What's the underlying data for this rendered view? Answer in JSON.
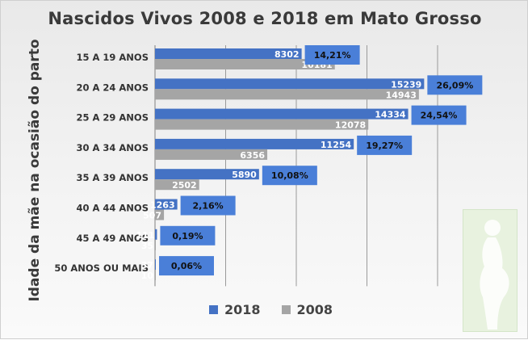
{
  "chart_data": {
    "type": "bar",
    "orientation": "horizontal",
    "title": "Nascidos Vivos 2008 e 2018 em Mato Grosso",
    "ylabel": "Idade da mãe na ocasião do parto",
    "categories": [
      "15 A 19 ANOS",
      "20 A 24 ANOS",
      "25 A 29 ANOS",
      "30 A 34 ANOS",
      "35 A 39 ANOS",
      "40 A 44 ANOS",
      "45 A 49 ANOS",
      "50 ANOS OU MAIS"
    ],
    "series": [
      {
        "name": "2018",
        "color": "#4472c4",
        "values": [
          8302,
          15239,
          14334,
          11254,
          5890,
          1263,
          111,
          37
        ]
      },
      {
        "name": "2008",
        "color": "#a5a5a5",
        "values": [
          10181,
          14943,
          12078,
          6356,
          2502,
          507,
          35,
          10
        ]
      }
    ],
    "annotations": [
      "14,21%",
      "26,09%",
      "24,54%",
      "19,27%",
      "10,08%",
      "2,16%",
      "0,19%",
      "0,06%"
    ],
    "annotation_color": "#4a7fd8",
    "grid": true,
    "legend": "bottom"
  },
  "legend": {
    "items": [
      "2018",
      "2008"
    ]
  }
}
